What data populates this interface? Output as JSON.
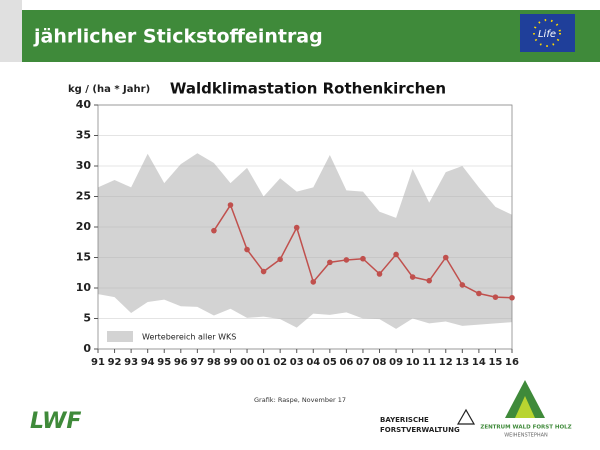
{
  "header": {
    "title": "jährlicher Stickstoffeintrag",
    "logo_text": "Life"
  },
  "chart_data": {
    "type": "range_line",
    "title": "Waldklimastation Rothenkirchen",
    "y_label": "kg / (ha * Jahr)",
    "categories": [
      "91",
      "92",
      "93",
      "94",
      "95",
      "96",
      "97",
      "98",
      "99",
      "00",
      "01",
      "02",
      "03",
      "04",
      "05",
      "06",
      "07",
      "08",
      "09",
      "10",
      "11",
      "12",
      "13",
      "14",
      "15",
      "16"
    ],
    "series": [
      {
        "name": "Wertebereich aller WKS",
        "color": "#d3d3d3",
        "upper": [
          26.5,
          27.7,
          26.5,
          32,
          27.2,
          30.3,
          32.1,
          30.5,
          27.2,
          29.7,
          25,
          28,
          25.8,
          26.5,
          31.8,
          26,
          25.8,
          22.5,
          21.5,
          29.5,
          24,
          29,
          30,
          26.5,
          23.3,
          22
        ],
        "lower": [
          9,
          8.5,
          5.9,
          7.7,
          8.1,
          7,
          6.9,
          5.5,
          6.6,
          5.1,
          5.3,
          4.9,
          3.5,
          5.8,
          5.6,
          6,
          5,
          4.9,
          3.3,
          5,
          4.2,
          4.5,
          3.8,
          4,
          4.2,
          4.4
        ]
      },
      {
        "color": "#c0504d",
        "values": [
          null,
          null,
          null,
          null,
          null,
          null,
          null,
          19.4,
          23.6,
          16.3,
          12.7,
          14.7,
          19.9,
          11,
          14.2,
          14.6,
          14.8,
          12.3,
          15.5,
          11.8,
          11.2,
          15,
          10.5,
          9.1,
          8.5,
          8.4
        ]
      }
    ],
    "ylim": [
      0,
      40
    ],
    "yticks": [
      0,
      5,
      10,
      15,
      20,
      25,
      30,
      35,
      40
    ],
    "grid": true,
    "source": "Grafik: Raspe, November 17"
  },
  "footer": {
    "left_logo": "LWF",
    "middle_logo": [
      "BAYERISCHE",
      "FORSTVERWALTUNG"
    ],
    "right_logo": [
      "ZENTRUM WALD FORST HOLZ",
      "WEIHENSTEPHAN"
    ]
  }
}
